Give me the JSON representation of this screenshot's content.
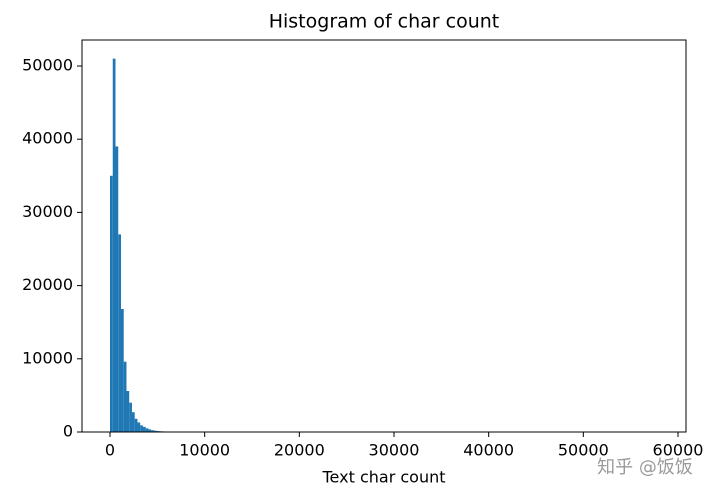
{
  "chart_data": {
    "type": "histogram",
    "title": "Histogram of char count",
    "xlabel": "Text char count",
    "bins": [
      0,
      290,
      580,
      870,
      1160,
      1450,
      1740,
      2030,
      2320,
      2610,
      2900,
      3190,
      3480,
      3770,
      4060,
      4350,
      4640,
      4930,
      5220,
      5510,
      5800,
      6090,
      6380,
      6670,
      6960
    ],
    "values": [
      35000,
      51000,
      39000,
      27000,
      16800,
      9600,
      5600,
      4000,
      2700,
      1800,
      1300,
      900,
      700,
      500,
      350,
      250,
      180,
      130,
      100,
      80,
      60,
      40,
      30,
      20
    ],
    "color": "#1f77b4",
    "xlim": [
      -2958,
      60845
    ],
    "ylim": [
      0,
      53550
    ],
    "xticks": [
      0,
      10000,
      20000,
      30000,
      40000,
      50000,
      60000
    ],
    "yticks": [
      0,
      10000,
      20000,
      30000,
      40000,
      50000
    ],
    "grid": false
  },
  "watermark": "知乎 @饭饭"
}
